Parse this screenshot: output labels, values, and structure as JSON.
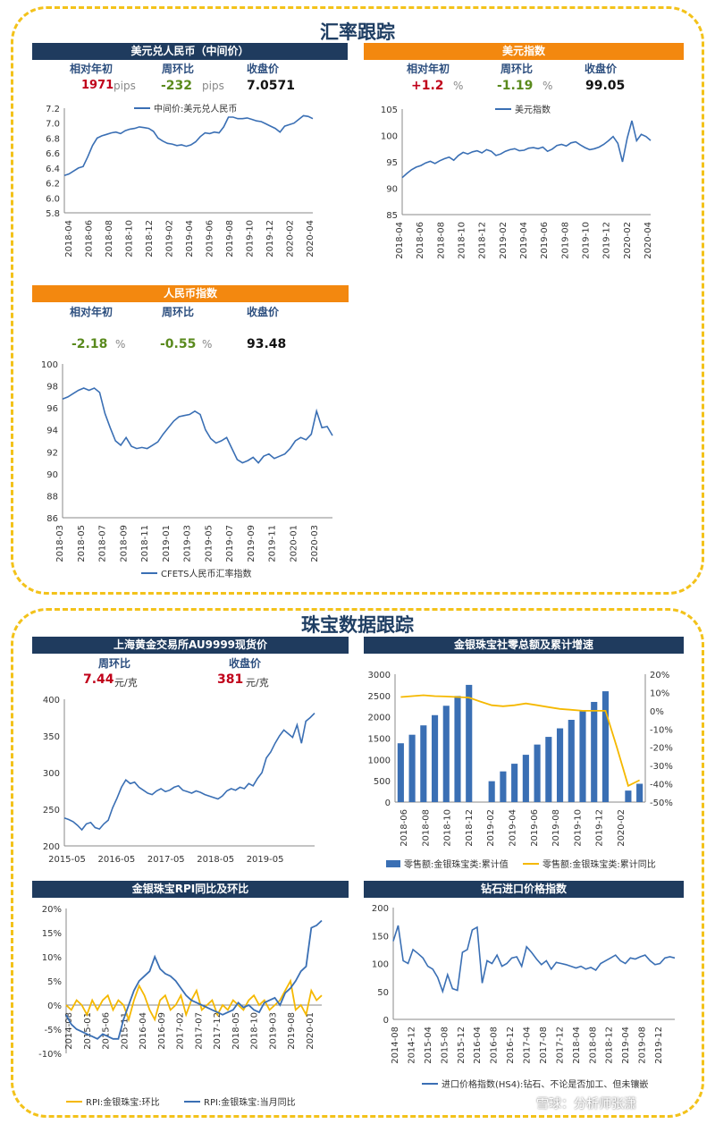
{
  "sections": {
    "fx_title": "汇率跟踪",
    "jewelry_title": "珠宝数据跟踪"
  },
  "usdcny": {
    "header": "美元兑人民币（中间价）",
    "labels": [
      "相对年初",
      "周环比",
      "收盘价"
    ],
    "ytd": "1971",
    "ytd_unit": "pips",
    "wow": "-232",
    "wow_unit": "pips",
    "close": "7.0571"
  },
  "dxy": {
    "header": "美元指数",
    "labels": [
      "相对年初",
      "周环比",
      "收盘价"
    ],
    "ytd": "+1.2",
    "ytd_unit": "%",
    "wow": "-1.19",
    "wow_unit": "%",
    "close": "99.05"
  },
  "cfets": {
    "header": "人民币指数",
    "labels": [
      "相对年初",
      "周环比",
      "收盘价"
    ],
    "ytd": "-2.18",
    "ytd_unit": "%",
    "wow": "-0.55",
    "wow_unit": "%",
    "close": "93.48"
  },
  "gold": {
    "header": "上海黄金交易所AU9999现货价",
    "labels": [
      "周环比",
      "收盘价"
    ],
    "wow": "7.44",
    "wow_unit": "元/克",
    "close": "381",
    "close_unit": "元/克"
  },
  "retail_header": "金银珠宝社零总额及累计增速",
  "rpi_header": "金银珠宝RPI同比及环比",
  "diamond_header": "钻石进口价格指数",
  "watermark": "雪球：分析师张潇",
  "colors": {
    "line": "#3a6fb4",
    "bar": "#3a6fb4",
    "yellow": "#f5b800",
    "navy": "#1f3b5e",
    "orange": "#f3880f"
  },
  "chart_data": [
    {
      "id": "usdcny",
      "type": "line",
      "legend": "中间价:美元兑人民币",
      "legend_position": "top",
      "ylim": [
        5.8,
        7.2
      ],
      "yticks": [
        "7.2",
        "7.0",
        "6.8",
        "6.6",
        "6.4",
        "6.2",
        "6.0",
        "5.8"
      ],
      "xticks": [
        "2018-04",
        "2018-06",
        "2018-08",
        "2018-10",
        "2018-12",
        "2019-02",
        "2019-04",
        "2019-06",
        "2019-08",
        "2019-10",
        "2019-12",
        "2020-02",
        "2020-04"
      ],
      "values": [
        6.3,
        6.32,
        6.36,
        6.4,
        6.42,
        6.55,
        6.7,
        6.8,
        6.83,
        6.85,
        6.87,
        6.88,
        6.86,
        6.9,
        6.92,
        6.93,
        6.95,
        6.94,
        6.93,
        6.89,
        6.8,
        6.76,
        6.73,
        6.72,
        6.7,
        6.71,
        6.69,
        6.71,
        6.75,
        6.82,
        6.87,
        6.86,
        6.88,
        6.87,
        6.95,
        7.08,
        7.08,
        7.06,
        7.06,
        7.07,
        7.05,
        7.03,
        7.02,
        6.99,
        6.96,
        6.93,
        6.88,
        6.96,
        6.98,
        7.0,
        7.05,
        7.1,
        7.09,
        7.06
      ]
    },
    {
      "id": "dxy",
      "type": "line",
      "legend": "美元指数",
      "legend_position": "top",
      "ylim": [
        85,
        105
      ],
      "yticks": [
        "105",
        "100",
        "95",
        "90",
        "85"
      ],
      "xticks": [
        "2018-04",
        "2018-06",
        "2018-08",
        "2018-10",
        "2018-12",
        "2019-02",
        "2019-04",
        "2019-06",
        "2019-08",
        "2019-10",
        "2019-12",
        "2020-02",
        "2020-04"
      ],
      "values": [
        92.0,
        92.8,
        93.5,
        94.0,
        94.3,
        94.8,
        95.1,
        94.7,
        95.2,
        95.6,
        95.9,
        95.3,
        96.2,
        96.8,
        96.5,
        96.9,
        97.1,
        96.7,
        97.3,
        97.0,
        96.2,
        96.5,
        97.0,
        97.3,
        97.5,
        97.1,
        97.2,
        97.6,
        97.7,
        97.5,
        97.8,
        97.0,
        97.4,
        98.1,
        98.3,
        98.0,
        98.6,
        98.8,
        98.2,
        97.7,
        97.3,
        97.5,
        97.8,
        98.3,
        99.0,
        99.8,
        98.5,
        95.0,
        99.5,
        102.8,
        99.0,
        100.2,
        99.8,
        99.05
      ]
    },
    {
      "id": "cfets",
      "type": "line",
      "legend": "CFETS人民币汇率指数",
      "legend_position": "bottom",
      "ylim": [
        86,
        100
      ],
      "yticks": [
        "100",
        "98",
        "96",
        "94",
        "92",
        "90",
        "88",
        "86"
      ],
      "xticks": [
        "2018-03",
        "2018-05",
        "2018-07",
        "2018-09",
        "2018-11",
        "2019-01",
        "2019-03",
        "2019-05",
        "2019-07",
        "2019-09",
        "2019-11",
        "2020-01",
        "2020-03"
      ],
      "values": [
        96.8,
        97.0,
        97.3,
        97.6,
        97.8,
        97.6,
        97.8,
        97.4,
        95.5,
        94.2,
        93.0,
        92.6,
        93.3,
        92.5,
        92.3,
        92.4,
        92.3,
        92.6,
        92.9,
        93.6,
        94.2,
        94.8,
        95.2,
        95.3,
        95.4,
        95.7,
        95.4,
        94.0,
        93.2,
        92.8,
        93.0,
        93.3,
        92.3,
        91.3,
        91.0,
        91.2,
        91.5,
        91.0,
        91.6,
        91.8,
        91.4,
        91.6,
        91.8,
        92.3,
        93.0,
        93.3,
        93.1,
        93.6,
        95.7,
        94.2,
        94.3,
        93.48
      ]
    },
    {
      "id": "gold",
      "type": "line",
      "ylim": [
        200,
        400
      ],
      "yticks": [
        "400",
        "350",
        "300",
        "250",
        "200"
      ],
      "xticks": [
        "2015-05",
        "2016-05",
        "2017-05",
        "2018-05",
        "2019-05"
      ],
      "values": [
        238,
        236,
        233,
        228,
        222,
        230,
        232,
        225,
        223,
        230,
        235,
        252,
        265,
        280,
        290,
        285,
        287,
        280,
        276,
        272,
        270,
        275,
        278,
        274,
        276,
        280,
        282,
        276,
        274,
        272,
        275,
        273,
        270,
        268,
        266,
        264,
        268,
        275,
        278,
        276,
        280,
        278,
        285,
        282,
        292,
        300,
        320,
        328,
        340,
        350,
        358,
        353,
        348,
        365,
        340,
        370,
        375,
        381
      ]
    },
    {
      "id": "retail",
      "type": "bar+line",
      "series": [
        {
          "name": "零售额:金银珠宝类:累计值",
          "type": "bar",
          "axis": "left",
          "values": [
            1380,
            1580,
            1800,
            2040,
            2260,
            2490,
            2750,
            null,
            490,
            720,
            900,
            1110,
            1350,
            1530,
            1730,
            1930,
            2150,
            2350,
            2600,
            null,
            270,
            430
          ]
        },
        {
          "name": "零售额:金银珠宝类:累计同比",
          "type": "line",
          "axis": "right",
          "values": [
            7.5,
            8.0,
            8.5,
            8.0,
            7.8,
            7.5,
            7.2,
            5.0,
            3.0,
            2.5,
            3.0,
            4.0,
            3.0,
            2.0,
            1.0,
            0.5,
            0,
            0,
            0,
            -20,
            -41.1,
            -38
          ]
        }
      ],
      "ylim_left": [
        0,
        3000
      ],
      "ylim_right": [
        -50,
        20
      ],
      "yticks_left": [
        "3000",
        "2500",
        "2000",
        "1500",
        "1000",
        "500",
        "0"
      ],
      "yticks_right": [
        "20%",
        "10%",
        "0%",
        "-10%",
        "-20%",
        "-30%",
        "-40%",
        "-50%"
      ],
      "xticks": [
        "2018-06",
        "2018-08",
        "2018-10",
        "2018-12",
        "2019-02",
        "2019-04",
        "2019-06",
        "2019-08",
        "2019-10",
        "2019-12",
        "2020-02"
      ]
    },
    {
      "id": "rpi",
      "type": "line",
      "series": [
        {
          "name": "RPI:金银珠宝:环比",
          "color": "#f5b800",
          "values": [
            0,
            -1,
            1,
            0,
            -2,
            1,
            -1,
            1,
            2,
            -1,
            1,
            0,
            -3,
            1,
            4,
            2,
            -1,
            -3,
            1,
            2,
            -1,
            0,
            2,
            -2,
            1,
            3,
            -1,
            0,
            1,
            -2,
            0,
            -1,
            1,
            0,
            -1,
            1,
            2,
            0,
            1,
            -1,
            0,
            1,
            3,
            5,
            -1,
            0,
            -2,
            3,
            1,
            2
          ]
        },
        {
          "name": "RPI:金银珠宝:当月同比",
          "color": "#3a6fb4",
          "values": [
            -2,
            -4,
            -5,
            -5.5,
            -6,
            -6.5,
            -7,
            -6,
            -6.5,
            -7,
            -7,
            -3,
            0,
            3,
            5,
            6,
            7,
            10,
            7.5,
            6.5,
            6,
            5,
            3.5,
            2,
            1,
            0.5,
            0,
            -0.5,
            -1,
            -1.5,
            -2,
            -1.5,
            -1,
            0.5,
            -0.5,
            0,
            -1,
            -1.5,
            0.5,
            1,
            1.5,
            0,
            2.5,
            3.5,
            5,
            7,
            8,
            16,
            16.5,
            17.5
          ]
        }
      ],
      "ylim": [
        -10,
        20
      ],
      "yticks": [
        "20%",
        "15%",
        "10%",
        "5%",
        "0%",
        "-5%",
        "-10%"
      ],
      "xticks": [
        "2014-08",
        "2015-01",
        "2015-06",
        "2015-11",
        "2016-04",
        "2016-09",
        "2017-02",
        "2017-07",
        "2017-12",
        "2018-05",
        "2018-10",
        "2019-03",
        "2019-08",
        "2020-01"
      ]
    },
    {
      "id": "diamond",
      "type": "line",
      "legend": "进口价格指数(HS4):钻石、不论是否加工、但未镶嵌",
      "ylim": [
        0,
        200
      ],
      "yticks": [
        "200",
        "150",
        "100",
        "50",
        "0"
      ],
      "xticks": [
        "2014-08",
        "2014-12",
        "2015-04",
        "2015-08",
        "2015-12",
        "2016-04",
        "2016-08",
        "2016-12",
        "2017-04",
        "2017-08",
        "2017-12",
        "2018-04",
        "2018-08",
        "2018-12",
        "2019-04",
        "2019-08",
        "2019-12"
      ],
      "values": [
        140,
        168,
        105,
        100,
        125,
        118,
        110,
        95,
        90,
        75,
        50,
        80,
        55,
        52,
        120,
        125,
        160,
        165,
        65,
        105,
        100,
        115,
        95,
        100,
        110,
        112,
        95,
        130,
        120,
        108,
        98,
        105,
        90,
        102,
        100,
        98,
        95,
        92,
        95,
        90,
        93,
        88,
        100,
        105,
        110,
        115,
        105,
        100,
        110,
        108,
        112,
        115,
        105,
        98,
        100,
        110,
        112,
        110
      ]
    }
  ]
}
